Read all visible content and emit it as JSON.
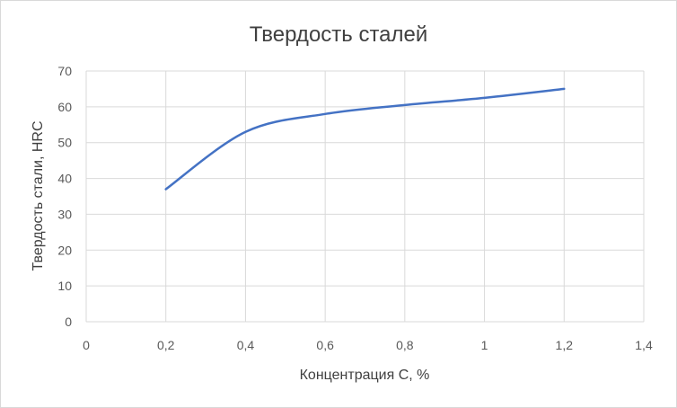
{
  "chart_data": {
    "type": "line",
    "title": "Твердость сталей",
    "xlabel": "Концентрация С, %",
    "ylabel": "Твердость стали, HRC",
    "xlim": [
      0,
      1.4
    ],
    "ylim": [
      0,
      70
    ],
    "x_ticks": [
      "0",
      "0,2",
      "0,4",
      "0,6",
      "0,8",
      "1",
      "1,2",
      "1,4"
    ],
    "y_ticks": [
      "0",
      "10",
      "20",
      "30",
      "40",
      "50",
      "60",
      "70"
    ],
    "grid": true,
    "legend": "none",
    "series": [
      {
        "x": [
          0.2,
          0.4,
          0.6,
          0.8,
          1.0,
          1.2
        ],
        "y": [
          37,
          53,
          58,
          60.5,
          62.5,
          65
        ],
        "color": "#4472c4"
      }
    ],
    "gridline_color": "#d9d9d9"
  }
}
